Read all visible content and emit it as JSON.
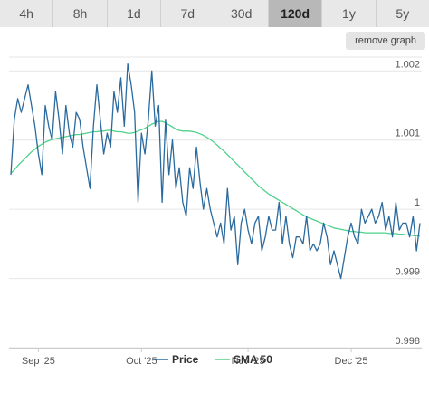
{
  "timeframes": [
    {
      "label": "4h",
      "active": false
    },
    {
      "label": "8h",
      "active": false
    },
    {
      "label": "1d",
      "active": false
    },
    {
      "label": "7d",
      "active": false
    },
    {
      "label": "30d",
      "active": false
    },
    {
      "label": "120d",
      "active": true
    },
    {
      "label": "1y",
      "active": false
    },
    {
      "label": "5y",
      "active": false
    }
  ],
  "remove_graph_label": "remove graph",
  "chart_data": {
    "type": "line",
    "title": "",
    "xlabel": "",
    "ylabel": "",
    "ylim": [
      0.998,
      1.0022
    ],
    "y_ticks": [
      {
        "value": 0.998,
        "label": "0.998"
      },
      {
        "value": 0.999,
        "label": "0.999"
      },
      {
        "value": 1.0,
        "label": "1"
      },
      {
        "value": 1.001,
        "label": "1.001"
      },
      {
        "value": 1.002,
        "label": "1.002"
      }
    ],
    "x_ticks": [
      {
        "index": 8,
        "label": "Sep '25"
      },
      {
        "index": 38,
        "label": "Oct '25"
      },
      {
        "index": 69,
        "label": "Nov '25"
      },
      {
        "index": 99,
        "label": "Dec '25"
      }
    ],
    "x_count": 120,
    "grid": true,
    "legend_position": "bottom",
    "series": [
      {
        "name": "Price",
        "color": "#2b6a9e",
        "values": [
          1.0005,
          1.0013,
          1.0016,
          1.0014,
          1.0016,
          1.0018,
          1.0015,
          1.0012,
          1.0008,
          1.0005,
          1.0015,
          1.0012,
          1.001,
          1.0017,
          1.0013,
          1.0008,
          1.0015,
          1.0011,
          1.0009,
          1.0014,
          1.0013,
          1.0009,
          1.0006,
          1.0003,
          1.0012,
          1.0018,
          1.0013,
          1.0008,
          1.0011,
          1.0009,
          1.0017,
          1.0014,
          1.0019,
          1.0012,
          1.0021,
          1.0018,
          1.0014,
          1.0001,
          1.0011,
          1.0008,
          1.0013,
          1.002,
          1.0012,
          1.0015,
          1.0001,
          1.0013,
          1.0005,
          1.001,
          1.0003,
          1.0006,
          1.0001,
          0.9999,
          1.0006,
          1.0003,
          1.0009,
          1.0004,
          1.0,
          1.0003,
          1.0,
          0.9998,
          0.9996,
          0.9998,
          0.9995,
          1.0003,
          0.9997,
          0.9999,
          0.9992,
          0.9998,
          1.0,
          0.9997,
          0.9995,
          0.9998,
          0.9999,
          0.9994,
          0.9996,
          0.9999,
          0.9997,
          0.9997,
          1.0001,
          0.9995,
          0.9999,
          0.9995,
          0.9993,
          0.9996,
          0.9996,
          0.9995,
          0.9999,
          0.9994,
          0.9995,
          0.9994,
          0.9995,
          0.9998,
          0.9996,
          0.9992,
          0.9994,
          0.9992,
          0.999,
          0.9993,
          0.9996,
          0.9998,
          0.9996,
          0.9995,
          1.0,
          0.9998,
          0.9999,
          1.0,
          0.9998,
          0.9999,
          1.0001,
          0.9997,
          0.9999,
          0.9996,
          1.0001,
          0.9997,
          0.9998,
          0.9998,
          0.9996,
          0.9999,
          0.9994,
          0.9998
        ]
      },
      {
        "name": "SMA 50",
        "color": "#4fd18b",
        "values": [
          1.00052,
          1.00057,
          1.00063,
          1.00068,
          1.00073,
          1.00078,
          1.00083,
          1.00087,
          1.00091,
          1.00094,
          1.00097,
          1.00099,
          1.00101,
          1.00102,
          1.00103,
          1.00104,
          1.00105,
          1.00106,
          1.00107,
          1.00108,
          1.00108,
          1.00109,
          1.0011,
          1.00111,
          1.00112,
          1.00112,
          1.00113,
          1.00113,
          1.00114,
          1.00114,
          1.00113,
          1.00112,
          1.00112,
          1.00111,
          1.0011,
          1.0011,
          1.00111,
          1.00113,
          1.00115,
          1.00117,
          1.0012,
          1.00123,
          1.00125,
          1.00127,
          1.00127,
          1.00125,
          1.00122,
          1.00119,
          1.00116,
          1.00114,
          1.00113,
          1.00113,
          1.00113,
          1.00112,
          1.00111,
          1.00109,
          1.00107,
          1.00104,
          1.00101,
          1.00097,
          1.00093,
          1.00088,
          1.00084,
          1.00079,
          1.00074,
          1.00069,
          1.00064,
          1.00059,
          1.00054,
          1.00049,
          1.00044,
          1.00039,
          1.00034,
          1.0003,
          1.00026,
          1.00022,
          1.00019,
          1.00016,
          1.00013,
          1.0001,
          1.00007,
          1.00004,
          1.00001,
          0.99998,
          0.99995,
          0.99992,
          0.99989,
          0.99987,
          0.99985,
          0.99983,
          0.99981,
          0.99979,
          0.99977,
          0.99975,
          0.99973,
          0.99972,
          0.99971,
          0.9997,
          0.99969,
          0.99968,
          0.99968,
          0.99967,
          0.99967,
          0.99966,
          0.99966,
          0.99966,
          0.99966,
          0.99966,
          0.99966,
          0.99966,
          0.99965,
          0.99965,
          0.99965,
          0.99964,
          0.99964,
          0.99963,
          0.99963,
          0.99962,
          0.99962,
          0.99961
        ]
      }
    ]
  }
}
